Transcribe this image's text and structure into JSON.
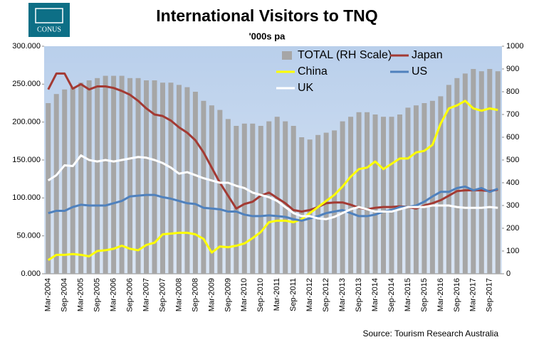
{
  "logo": "CONUS",
  "chart_data": {
    "type": "bar-line",
    "title": "International Visitors to TNQ",
    "subtitle": "'000s pa",
    "source": "Source: Tourism Research Australia",
    "categories": [
      "Mar-2004",
      null,
      "Sep-2004",
      null,
      "Mar-2005",
      null,
      "Sep-2005",
      null,
      "Mar-2006",
      null,
      "Sep-2006",
      null,
      "Mar-2007",
      null,
      "Sep-2007",
      null,
      "Mar-2008",
      null,
      "Sep-2008",
      null,
      "Mar-2009",
      null,
      "Sep-2009",
      null,
      "Mar-2010",
      null,
      "Sep-2010",
      null,
      "Mar-2011",
      null,
      "Sep-2011",
      null,
      "Mar-2012",
      null,
      "Sep-2012",
      null,
      "Mar-2013",
      null,
      "Sep-2013",
      null,
      "Mar-2014",
      null,
      "Sep-2014",
      null,
      "Mar-2015",
      null,
      "Sep-2015",
      null,
      "Mar-2016",
      null,
      "Sep-2016",
      null,
      "Mar-2017",
      null,
      "Sep-2017",
      null
    ],
    "ylim": [
      0,
      300
    ],
    "yticks": [
      {
        "value": 0,
        "label": "0.000"
      },
      {
        "value": 50,
        "label": "50.000"
      },
      {
        "value": 100,
        "label": "100.000"
      },
      {
        "value": 150,
        "label": "150.000"
      },
      {
        "value": 200,
        "label": "200.000"
      },
      {
        "value": 250,
        "label": "250.000"
      },
      {
        "value": 300,
        "label": "300.000"
      }
    ],
    "y2lim": [
      0,
      1000
    ],
    "y2ticks": [
      0,
      100,
      200,
      300,
      400,
      500,
      600,
      700,
      800,
      900,
      1000
    ],
    "legend": "top-right",
    "series": [
      {
        "name": "TOTAL (RH Scale)",
        "kind": "bar",
        "axis": "y2",
        "color": "#a6a6a6",
        "values": [
          750,
          790,
          810,
          820,
          840,
          850,
          860,
          870,
          870,
          870,
          860,
          860,
          850,
          850,
          840,
          840,
          830,
          820,
          800,
          760,
          740,
          720,
          680,
          650,
          660,
          660,
          650,
          670,
          690,
          670,
          650,
          600,
          590,
          610,
          620,
          630,
          670,
          690,
          710,
          710,
          700,
          690,
          690,
          700,
          730,
          740,
          750,
          760,
          780,
          830,
          860,
          880,
          900,
          890,
          900,
          890
        ]
      },
      {
        "name": "Japan",
        "kind": "line",
        "color": "#a33a33",
        "values": [
          243,
          264,
          264,
          244,
          250,
          243,
          247,
          247,
          245,
          241,
          236,
          228,
          218,
          210,
          208,
          202,
          193,
          186,
          176,
          160,
          140,
          120,
          103,
          86,
          92,
          95,
          103,
          107,
          100,
          93,
          84,
          82,
          84,
          88,
          93,
          94,
          94,
          91,
          87,
          85,
          87,
          88,
          88,
          89,
          88,
          86,
          90,
          93,
          97,
          103,
          109,
          110,
          110,
          110,
          109,
          111
        ]
      },
      {
        "name": "China",
        "kind": "line",
        "color": "#ffff00",
        "values": [
          18,
          25,
          25,
          26,
          25,
          23,
          30,
          31,
          33,
          37,
          33,
          31,
          38,
          41,
          52,
          53,
          54,
          54,
          52,
          46,
          28,
          36,
          35,
          37,
          40,
          47,
          55,
          68,
          70,
          70,
          68,
          72,
          80,
          88,
          96,
          104,
          115,
          128,
          138,
          140,
          148,
          138,
          145,
          152,
          152,
          160,
          162,
          170,
          198,
          218,
          222,
          228,
          218,
          215,
          218,
          216
        ]
      },
      {
        "name": "US",
        "kind": "line",
        "color": "#4f81bd",
        "values": [
          80,
          83,
          83,
          88,
          91,
          90,
          90,
          90,
          93,
          96,
          102,
          103,
          104,
          104,
          101,
          99,
          96,
          93,
          92,
          87,
          86,
          85,
          82,
          82,
          78,
          76,
          76,
          77,
          76,
          75,
          72,
          70,
          73,
          76,
          80,
          82,
          84,
          80,
          76,
          76,
          78,
          82,
          84,
          88,
          88,
          90,
          95,
          102,
          108,
          108,
          113,
          115,
          110,
          113,
          108,
          112
        ]
      },
      {
        "name": "UK",
        "kind": "line",
        "color": "#ffffff",
        "values": [
          123,
          130,
          143,
          142,
          156,
          150,
          148,
          150,
          148,
          150,
          152,
          154,
          153,
          150,
          146,
          140,
          132,
          134,
          130,
          126,
          123,
          120,
          120,
          116,
          113,
          107,
          104,
          101,
          96,
          88,
          80,
          76,
          76,
          73,
          72,
          75,
          80,
          85,
          88,
          85,
          82,
          82,
          82,
          85,
          88,
          88,
          88,
          90,
          90,
          90,
          88,
          87,
          87,
          87,
          88,
          87
        ]
      }
    ]
  }
}
